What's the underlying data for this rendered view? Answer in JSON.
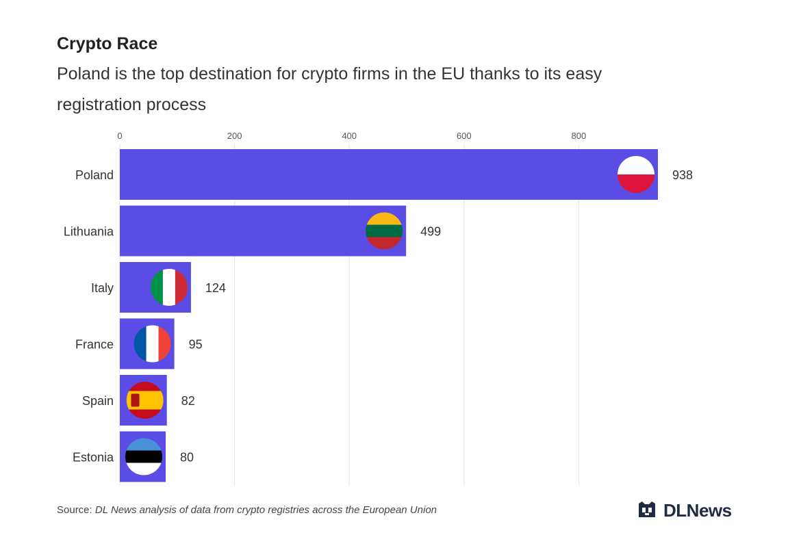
{
  "header": {
    "title": "Crypto Race",
    "subtitle": "Poland is the top destination for crypto firms in the EU thanks to its easy registration process"
  },
  "footer": {
    "source_label": "Source:",
    "source_text": "DL News analysis of data from crypto registries across the European Union"
  },
  "logo": {
    "brand_a": "DL",
    "brand_b": "News"
  },
  "colors": {
    "bar": "#5b4ce6",
    "bar_border": "#5b4ce6",
    "grid": "#e6e6e6",
    "text": "#333333"
  },
  "chart_data": {
    "type": "bar",
    "orientation": "horizontal",
    "categories": [
      "Poland",
      "Lithuania",
      "Italy",
      "France",
      "Spain",
      "Estonia"
    ],
    "values": [
      938,
      499,
      124,
      95,
      82,
      80
    ],
    "flag_icons": [
      "poland-flag-icon",
      "lithuania-flag-icon",
      "italy-flag-icon",
      "france-flag-icon",
      "spain-flag-icon",
      "estonia-flag-icon"
    ],
    "xlim": [
      0,
      938
    ],
    "xticks": [
      0,
      200,
      400,
      600,
      800
    ],
    "xtick_labels": [
      "0",
      "200",
      "400",
      "600",
      "800"
    ],
    "grid": true,
    "axis_position": "top"
  }
}
